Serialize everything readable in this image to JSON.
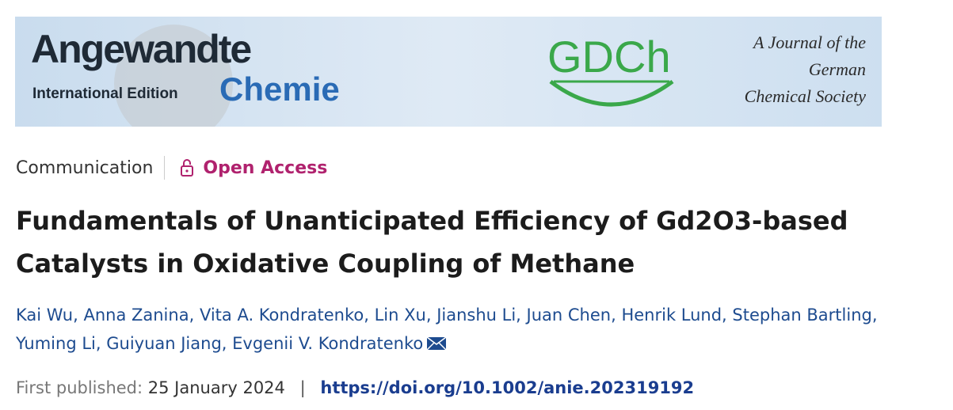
{
  "banner": {
    "journal_name": "Angewandte",
    "edition": "International Edition",
    "journal_subname": "Chemie",
    "society_logo": "GDCh",
    "society_lines": [
      "A Journal of the",
      "German",
      "Chemical Society"
    ]
  },
  "article_type": "Communication",
  "access": "Open Access",
  "title": "Fundamentals of Unanticipated Efficiency of Gd2O3-based Catalysts in Oxidative Coupling of Methane",
  "authors": [
    "Kai Wu,",
    "Anna Zanina,",
    "Vita A. Kondratenko,",
    "Lin Xu,",
    "Jianshu Li,",
    "Juan Chen,",
    "Henrik Lund,",
    "Stephan Bartling,",
    "Yuming Li,",
    "Guiyuan Jiang,",
    "Evgenii V. Kondratenko"
  ],
  "publication": {
    "label": "First published:",
    "date": "25 January 2024",
    "separator": "|",
    "doi": "https://doi.org/10.1002/anie.202319192"
  }
}
